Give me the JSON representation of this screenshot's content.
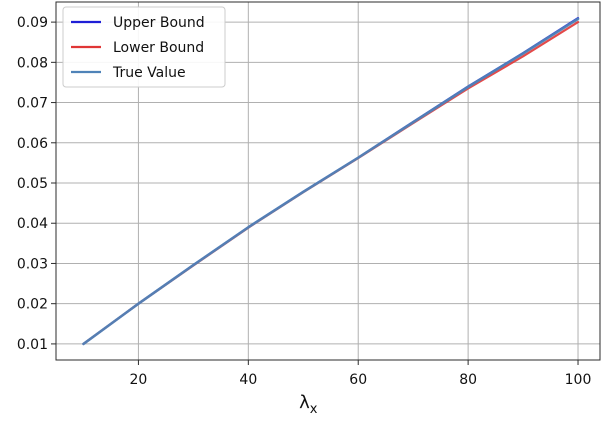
{
  "chart_data": {
    "type": "line",
    "title": "",
    "xlabel_base": "λ",
    "xlabel_sub": "x",
    "ylabel": "",
    "xlim": [
      5,
      104
    ],
    "ylim": [
      0.006,
      0.095
    ],
    "xticks": [
      20,
      40,
      60,
      80,
      100
    ],
    "yticks": [
      0.01,
      0.02,
      0.03,
      0.04,
      0.05,
      0.06,
      0.07,
      0.08,
      0.09
    ],
    "x_tick_labels": [
      "20",
      "40",
      "60",
      "80",
      "100"
    ],
    "y_tick_labels": [
      "0.01",
      "0.02",
      "0.03",
      "0.04",
      "0.05",
      "0.06",
      "0.07",
      "0.08",
      "0.09"
    ],
    "grid": true,
    "legend_position": "top-left",
    "x": [
      10,
      20,
      30,
      40,
      50,
      60,
      70,
      80,
      90,
      100
    ],
    "series": [
      {
        "name": "Upper Bound",
        "color": "#1f1fd6",
        "values": [
          0.01,
          0.02,
          0.0296,
          0.039,
          0.0478,
          0.0563,
          0.0652,
          0.074,
          0.0823,
          0.091
        ]
      },
      {
        "name": "Lower Bound",
        "color": "#e03636",
        "values": [
          0.01,
          0.02,
          0.0295,
          0.0389,
          0.0477,
          0.0562,
          0.0649,
          0.0735,
          0.0815,
          0.09
        ]
      },
      {
        "name": "True Value",
        "color": "#4f83b8",
        "values": [
          0.01,
          0.02,
          0.0296,
          0.039,
          0.0478,
          0.0563,
          0.0651,
          0.0739,
          0.0822,
          0.0908
        ]
      }
    ]
  }
}
